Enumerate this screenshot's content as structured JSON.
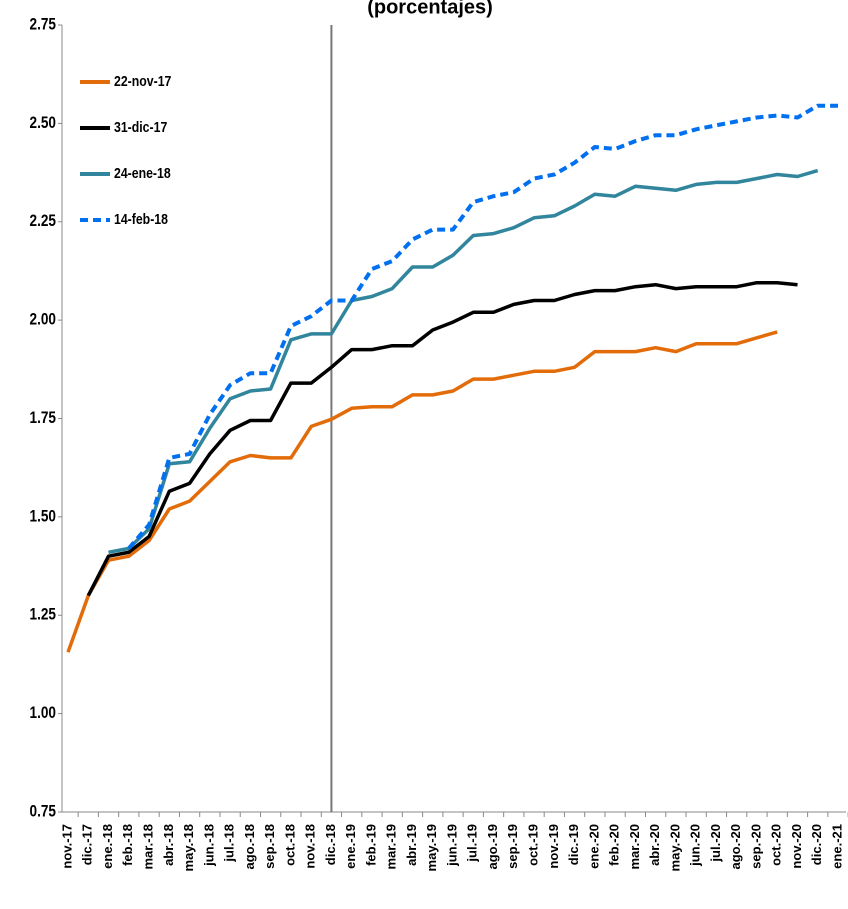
{
  "chart_data": {
    "type": "line",
    "title": "(porcentajes)",
    "categories": [
      "nov.-17",
      "dic.-17",
      "ene.-18",
      "feb.-18",
      "mar.-18",
      "abr.-18",
      "may.-18",
      "jun.-18",
      "jul.-18",
      "ago.-18",
      "sep.-18",
      "oct.-18",
      "nov.-18",
      "dic.-18",
      "ene.-19",
      "feb.-19",
      "mar.-19",
      "abr.-19",
      "may.-19",
      "jun.-19",
      "jul.-19",
      "ago.-19",
      "sep.-19",
      "oct.-19",
      "nov.-19",
      "dic.-19",
      "ene.-20",
      "feb.-20",
      "mar.-20",
      "abr.-20",
      "may.-20",
      "jun.-20",
      "jul.-20",
      "ago.-20",
      "sep.-20",
      "oct.-20",
      "nov.-20",
      "dic.-20",
      "ene.-21"
    ],
    "series": [
      {
        "name": "22-nov-17",
        "color": "#e36c0a",
        "style": "solid",
        "values": [
          1.156,
          1.3,
          1.39,
          1.4,
          1.44,
          1.52,
          1.54,
          1.59,
          1.64,
          1.656,
          1.65,
          1.65,
          1.73,
          1.748,
          1.776,
          1.78,
          1.78,
          1.81,
          1.81,
          1.82,
          1.85,
          1.85,
          1.86,
          1.87,
          1.87,
          1.88,
          1.92,
          1.92,
          1.92,
          1.93,
          1.92,
          1.94,
          1.94,
          1.94,
          1.955,
          1.97,
          null,
          null,
          null
        ]
      },
      {
        "name": "31-dic-17",
        "color": "#000000",
        "style": "solid",
        "values": [
          null,
          1.3,
          1.4,
          1.41,
          1.45,
          1.565,
          1.585,
          1.66,
          1.72,
          1.745,
          1.745,
          1.84,
          1.84,
          1.88,
          1.925,
          1.925,
          1.935,
          1.935,
          1.975,
          1.995,
          2.02,
          2.02,
          2.04,
          2.05,
          2.05,
          2.065,
          2.075,
          2.075,
          2.085,
          2.09,
          2.08,
          2.085,
          2.085,
          2.085,
          2.095,
          2.095,
          2.09,
          null,
          null
        ]
      },
      {
        "name": "24-ene-18",
        "color": "#31859c",
        "style": "solid",
        "values": [
          null,
          null,
          1.41,
          1.42,
          1.47,
          1.635,
          1.64,
          1.725,
          1.8,
          1.82,
          1.825,
          1.95,
          1.965,
          1.965,
          2.05,
          2.06,
          2.08,
          2.135,
          2.135,
          2.165,
          2.215,
          2.22,
          2.235,
          2.26,
          2.265,
          2.29,
          2.32,
          2.315,
          2.34,
          2.335,
          2.33,
          2.345,
          2.35,
          2.35,
          2.36,
          2.37,
          2.365,
          2.38,
          null
        ]
      },
      {
        "name": "14-feb-18",
        "color": "#0070f0",
        "style": "dashed",
        "values": [
          null,
          null,
          null,
          1.42,
          1.48,
          1.65,
          1.66,
          1.76,
          1.835,
          1.865,
          1.865,
          1.985,
          2.01,
          2.05,
          2.05,
          2.13,
          2.15,
          2.205,
          2.23,
          2.23,
          2.3,
          2.315,
          2.325,
          2.36,
          2.37,
          2.4,
          2.44,
          2.435,
          2.455,
          2.47,
          2.47,
          2.485,
          2.495,
          2.505,
          2.515,
          2.52,
          2.515,
          2.545,
          2.545
        ]
      }
    ],
    "ylim": [
      0.75,
      2.75
    ],
    "yticks": [
      {
        "value": 0.75,
        "label": "0.75"
      },
      {
        "value": 1,
        "label": "1.00"
      },
      {
        "value": 1.25,
        "label": "1.25"
      },
      {
        "value": 1.5,
        "label": "1.50"
      },
      {
        "value": 1.75,
        "label": "1.75"
      },
      {
        "value": 2,
        "label": "2.00"
      },
      {
        "value": 2.25,
        "label": "2.25"
      },
      {
        "value": 2.5,
        "label": "2.50"
      },
      {
        "value": 2.75,
        "label": "2.75"
      }
    ],
    "grid": false,
    "legend": "top-left"
  }
}
